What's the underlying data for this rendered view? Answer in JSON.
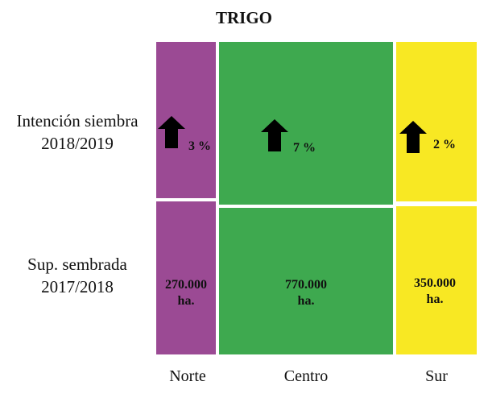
{
  "chart_data": {
    "type": "table",
    "title": "TRIGO",
    "columns": [
      "Norte",
      "Centro",
      "Sur"
    ],
    "rows": [
      {
        "label_lines": [
          "Intención siembra",
          "2018/2019"
        ],
        "values": [
          {
            "text": "3 %",
            "percent": 3,
            "trend": "up"
          },
          {
            "text": "7 %",
            "percent": 7,
            "trend": "up"
          },
          {
            "text": "2 %",
            "percent": 2,
            "trend": "up"
          }
        ]
      },
      {
        "label_lines": [
          "Sup. sembrada",
          "2017/2018"
        ],
        "values": [
          {
            "line1": "270.000",
            "line2": "ha.",
            "hectares": 270000
          },
          {
            "line1": "770.000",
            "line2": "ha.",
            "hectares": 770000
          },
          {
            "line1": "350.000",
            "line2": "ha.",
            "hectares": 350000
          }
        ]
      }
    ],
    "colors": {
      "Norte": "#9b4a94",
      "Centro": "#3ea94f",
      "Sur": "#f8e823",
      "arrow": "#000000"
    }
  }
}
